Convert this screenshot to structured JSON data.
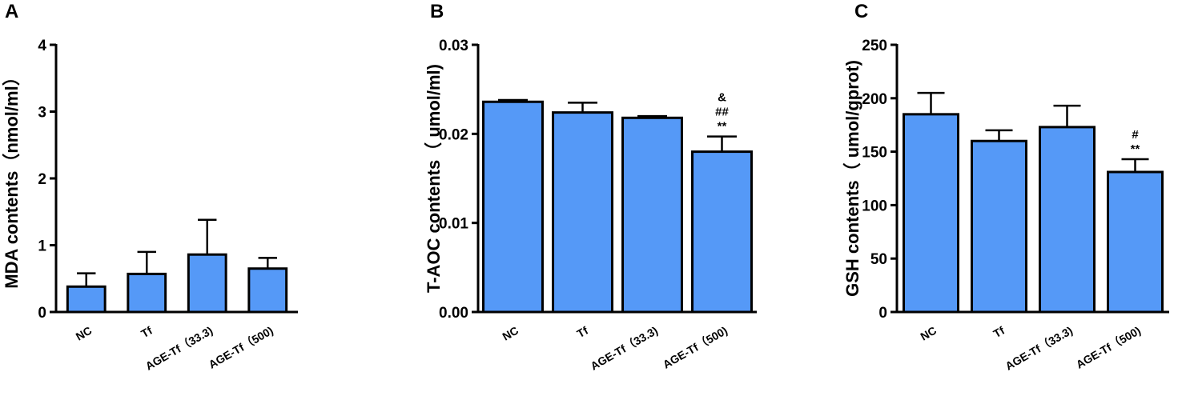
{
  "chart_data": [
    {
      "type": "bar",
      "title": "A",
      "y_label": "MDA contents（nmol/ml）",
      "categories": [
        "NC",
        "Tf",
        "AGE-Tf（33.3)",
        "AGE-Tf（500)"
      ],
      "values": [
        0.38,
        0.57,
        0.86,
        0.65
      ],
      "errors": [
        0.2,
        0.33,
        0.52,
        0.16
      ],
      "color": "#5599f7",
      "ylim": [
        0,
        4
      ],
      "yticks": [
        0,
        1,
        2,
        3,
        4
      ]
    },
    {
      "type": "bar",
      "title": "B",
      "y_label": "T-AOC contents（ umol/ml)",
      "categories": [
        "NC",
        "Tf",
        "AGE-Tf（33.3)",
        "AGE-Tf（500)"
      ],
      "values": [
        0.0236,
        0.0224,
        0.0218,
        0.018
      ],
      "errors": [
        0.0002,
        0.0011,
        0.0002,
        0.0017
      ],
      "annotations": [
        null,
        null,
        null,
        [
          "&",
          "##",
          "**"
        ]
      ],
      "color": "#5599f7",
      "ylim": [
        0,
        0.03
      ],
      "yticks": [
        {
          "value": 0,
          "label": "0.00"
        },
        0.01,
        0.02,
        0.03
      ]
    },
    {
      "type": "bar",
      "title": "C",
      "y_label": "GSH contents（ umol/gprot)",
      "categories": [
        "NC",
        "Tf",
        "AGE-Tf（33.3)",
        "AGE-Tf（500)"
      ],
      "values": [
        185,
        160,
        173,
        131
      ],
      "errors": [
        20,
        10,
        20,
        12
      ],
      "annotations": [
        null,
        null,
        null,
        [
          "#",
          "**"
        ]
      ],
      "color": "#5599f7",
      "ylim": [
        0,
        250
      ],
      "yticks": [
        0,
        50,
        100,
        150,
        200,
        250
      ]
    }
  ]
}
